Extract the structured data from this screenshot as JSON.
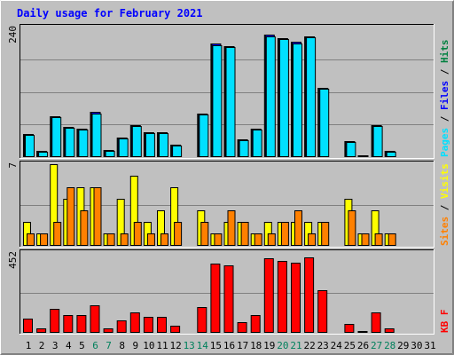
{
  "chart_data": {
    "type": "bar",
    "title": "Daily usage for February 2021",
    "days": [
      "1",
      "2",
      "3",
      "4",
      "5",
      "6",
      "7",
      "8",
      "9",
      "10",
      "11",
      "12",
      "13",
      "14",
      "15",
      "16",
      "17",
      "18",
      "19",
      "20",
      "21",
      "22",
      "23",
      "24",
      "25",
      "26",
      "27",
      "28",
      "29",
      "30",
      "31"
    ],
    "weekend_days": [
      "6",
      "7",
      "13",
      "14",
      "20",
      "21",
      "27",
      "28"
    ],
    "colors": {
      "title": "#0000ff",
      "background": "#c0c0c0",
      "panel": "#c0c0c0",
      "grid": "#808080",
      "hits": "#008040",
      "files": "#0000ff",
      "pages": "#00e0ff",
      "visits": "#ffff00",
      "sites": "#ff8000",
      "kbytes": "#ff0000",
      "weekend_label": "#00805c",
      "weekday_label": "#000000"
    },
    "panels": [
      {
        "name": "hits-files-pages",
        "scale_label": "240",
        "ymax": 240,
        "legend": [
          {
            "text": "Pages",
            "color": "#00e0ff"
          },
          {
            "text": " / ",
            "color": "#000000"
          },
          {
            "text": "Files",
            "color": "#0000ff"
          },
          {
            "text": " / ",
            "color": "#000000"
          },
          {
            "text": "Hits",
            "color": "#008040"
          }
        ],
        "series": [
          {
            "name": "Hits",
            "color": "#008040",
            "values": [
              42,
              10,
              74,
              55,
              52,
              82,
              11,
              35,
              58,
              45,
              45,
              22,
              0,
              80,
              210,
              205,
              32,
              51,
              226,
              220,
              213,
              224,
              127,
              0,
              28,
              1,
              58,
              10,
              0,
              0,
              0
            ]
          },
          {
            "name": "Files",
            "color": "#0000ff",
            "values": [
              42,
              10,
              74,
              55,
              52,
              82,
              11,
              35,
              58,
              45,
              45,
              22,
              0,
              80,
              210,
              205,
              32,
              51,
              226,
              220,
              213,
              224,
              127,
              0,
              28,
              1,
              58,
              10,
              0,
              0,
              0
            ]
          },
          {
            "name": "Pages",
            "color": "#00e0ff",
            "values": [
              40,
              9,
              72,
              53,
              50,
              80,
              10,
              33,
              56,
              43,
              43,
              20,
              0,
              78,
              207,
              203,
              30,
              49,
              224,
              218,
              211,
              221,
              125,
              0,
              26,
              0,
              56,
              9,
              0,
              0,
              0
            ]
          }
        ]
      },
      {
        "name": "visits-sites",
        "scale_label": "7",
        "ymax": 7,
        "legend": [
          {
            "text": "Sites",
            "color": "#ff8000"
          },
          {
            "text": " / ",
            "color": "#000000"
          },
          {
            "text": "Visits",
            "color": "#ffff00"
          }
        ],
        "series": [
          {
            "name": "Visits",
            "color": "#ffff00",
            "values": [
              2,
              1,
              7,
              4,
              5,
              5,
              1,
              4,
              6,
              2,
              3,
              5,
              0,
              3,
              1,
              2,
              2,
              1,
              2,
              2,
              2,
              2,
              2,
              0,
              4,
              1,
              3,
              1,
              0,
              0,
              0
            ]
          },
          {
            "name": "Sites",
            "color": "#ff8000",
            "values": [
              1,
              1,
              2,
              5,
              3,
              5,
              1,
              1,
              2,
              1,
              1,
              2,
              0,
              2,
              1,
              3,
              2,
              1,
              1,
              2,
              3,
              1,
              2,
              0,
              3,
              1,
              1,
              1,
              0,
              0,
              0
            ]
          }
        ]
      },
      {
        "name": "kbytes",
        "scale_label": "452",
        "ymax": 452,
        "legend": [
          {
            "text": "KB F",
            "color": "#ff0000"
          }
        ],
        "series": [
          {
            "name": "KB F",
            "color": "#ff0000",
            "values": [
              75,
              20,
              130,
              95,
              95,
              150,
              20,
              65,
              110,
              85,
              85,
              35,
              0,
              140,
              392,
              380,
              55,
              95,
              420,
              408,
              398,
              425,
              240,
              0,
              45,
              5,
              110,
              20,
              0,
              0,
              0
            ]
          }
        ]
      }
    ]
  }
}
